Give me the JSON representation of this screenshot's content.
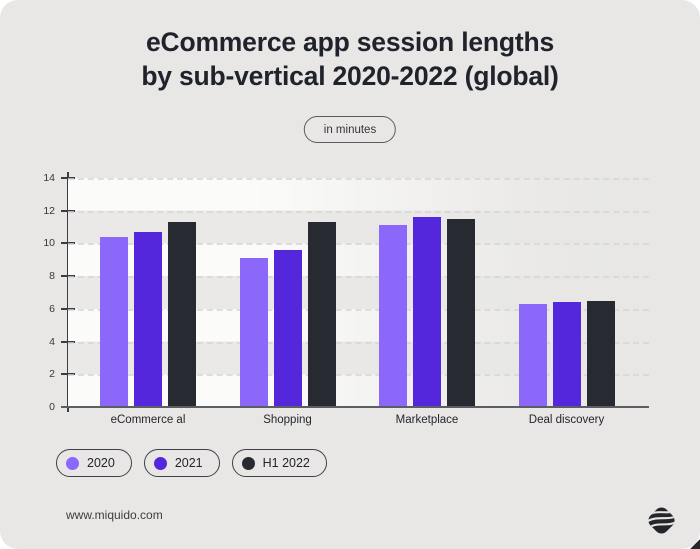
{
  "title": {
    "line1": "eCommerce app session lengths",
    "line2": "by sub-vertical 2020-2022 (global)"
  },
  "unit_badge": {
    "label": "in minutes"
  },
  "chart_data": {
    "type": "bar",
    "categories": [
      "eCommerce al",
      "Shopping",
      "Marketplace",
      "Deal discovery"
    ],
    "series": [
      {
        "name": "2020",
        "color": "#8b67fa",
        "values": [
          10.4,
          9.1,
          11.1,
          6.3
        ]
      },
      {
        "name": "2021",
        "color": "#5426dc",
        "values": [
          10.7,
          9.6,
          11.6,
          6.4
        ]
      },
      {
        "name": "H1 2022",
        "color": "#282a31",
        "values": [
          11.3,
          11.3,
          11.5,
          6.5
        ]
      }
    ],
    "title": "eCommerce app session lengths by sub-vertical 2020-2022 (global)",
    "xlabel": "",
    "ylabel": "in minutes",
    "ylim": [
      0,
      14
    ],
    "yticks": [
      0,
      2,
      4,
      6,
      8,
      10,
      12,
      14
    ],
    "grid": "horizontal dashed at every 2 units, alternating band shading",
    "legend_position": "bottom-left"
  },
  "legend": {
    "items": [
      {
        "label": "2020",
        "color": "#8b67fa"
      },
      {
        "label": "2021",
        "color": "#5426dc"
      },
      {
        "label": "H1 2022",
        "color": "#282a31"
      }
    ]
  },
  "footer": {
    "website": "www.miquido.com"
  },
  "branding": {
    "logo": "miquido-logo"
  },
  "colors": {
    "card_background": "#e8e7e5",
    "text_dark": "#20232b",
    "axis": "#3a3d43",
    "series_2020": "#8b67fa",
    "series_2021": "#5426dc",
    "series_h1_2022": "#282a31"
  }
}
